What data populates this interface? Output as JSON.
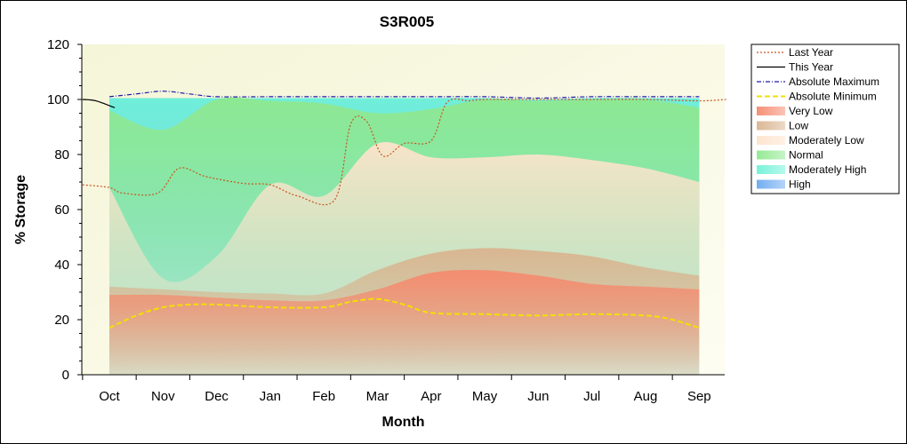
{
  "chart_data": {
    "type": "area",
    "title": "S3R005",
    "xlabel": "Month",
    "ylabel": "% Storage",
    "ylim": [
      0,
      120
    ],
    "yticks": [
      0,
      20,
      40,
      60,
      80,
      100,
      120
    ],
    "categories": [
      "Oct",
      "Nov",
      "Dec",
      "Jan",
      "Feb",
      "Mar",
      "Apr",
      "May",
      "Jun",
      "Jul",
      "Aug",
      "Sep"
    ],
    "grid": false,
    "legend_position": "right",
    "bands": [
      {
        "name": "Very Low",
        "color": "#f58a6e",
        "upper": [
          29,
          29,
          28,
          27,
          27,
          31,
          37,
          38,
          36,
          33,
          32,
          31
        ]
      },
      {
        "name": "Low",
        "color": "#d9b48f",
        "upper": [
          32,
          31,
          30,
          29.5,
          29.5,
          38,
          44,
          46,
          45,
          43,
          39,
          36
        ]
      },
      {
        "name": "Moderately Low",
        "color": "#fde3cc",
        "upper": [
          68,
          35,
          43,
          69,
          65,
          84,
          79,
          79,
          80,
          78,
          75,
          70
        ]
      },
      {
        "name": "Normal",
        "color": "#8fe88f",
        "upper": [
          96,
          89,
          100,
          99.5,
          98.5,
          95,
          96.5,
          100,
          99.5,
          100,
          100,
          97
        ]
      },
      {
        "name": "Moderately High",
        "color": "#70f2d8",
        "upper": [
          100.5,
          100.5,
          100.5,
          100.5,
          100.5,
          100.5,
          100.5,
          100.5,
          100,
          100.5,
          100.5,
          100.5
        ]
      },
      {
        "name": "High",
        "color": "#6aa9f0",
        "upper": [
          100.5,
          100.5,
          100.5,
          100.5,
          100.5,
          100.5,
          100.5,
          100.5,
          100,
          100.5,
          100.5,
          100.5
        ]
      }
    ],
    "series": [
      {
        "name": "Last Year",
        "color": "#c9541f",
        "style": "dotted",
        "points": [
          [
            -0.5,
            69
          ],
          [
            0,
            68
          ],
          [
            0.25,
            66
          ],
          [
            0.9,
            66
          ],
          [
            1.3,
            75
          ],
          [
            1.8,
            72
          ],
          [
            2.5,
            69.5
          ],
          [
            3.0,
            69
          ],
          [
            3.5,
            65
          ],
          [
            4.2,
            63.5
          ],
          [
            4.5,
            91
          ],
          [
            4.8,
            92
          ],
          [
            5.1,
            79.5
          ],
          [
            5.5,
            84
          ],
          [
            6.0,
            85
          ],
          [
            6.3,
            99
          ],
          [
            6.7,
            99.5
          ],
          [
            7.0,
            100
          ],
          [
            8.0,
            100
          ],
          [
            9.0,
            100
          ],
          [
            10.0,
            100
          ],
          [
            11.0,
            99.5
          ],
          [
            11.5,
            100
          ]
        ]
      },
      {
        "name": "This Year",
        "color": "#000000",
        "style": "solid",
        "points": [
          [
            -0.5,
            100
          ],
          [
            -0.25,
            99.5
          ],
          [
            0.1,
            97
          ]
        ]
      },
      {
        "name": "Absolute Maximum",
        "color": "#1a1aa8",
        "style": "dashdot",
        "points": [
          [
            0,
            101
          ],
          [
            0.5,
            102
          ],
          [
            1.0,
            103
          ],
          [
            1.5,
            102
          ],
          [
            2.0,
            101
          ],
          [
            3.0,
            101
          ],
          [
            4.0,
            101
          ],
          [
            5.0,
            101
          ],
          [
            6.0,
            101
          ],
          [
            7.0,
            101
          ],
          [
            8.0,
            100.5
          ],
          [
            9.0,
            101
          ],
          [
            10.0,
            101
          ],
          [
            11.0,
            101
          ]
        ]
      },
      {
        "name": "Absolute Minimum",
        "color": "#f2e000",
        "style": "dashed",
        "points": [
          [
            0,
            17
          ],
          [
            0.5,
            21.5
          ],
          [
            1.0,
            24.5
          ],
          [
            1.5,
            25.5
          ],
          [
            2.0,
            25.5
          ],
          [
            3.0,
            24.5
          ],
          [
            4.0,
            24.5
          ],
          [
            4.5,
            26.5
          ],
          [
            5.0,
            27.5
          ],
          [
            5.5,
            25.5
          ],
          [
            6.0,
            22.5
          ],
          [
            7.0,
            22
          ],
          [
            8.0,
            21.5
          ],
          [
            9.0,
            22
          ],
          [
            10.0,
            21.5
          ],
          [
            10.5,
            20
          ],
          [
            11.0,
            17
          ]
        ]
      }
    ]
  }
}
